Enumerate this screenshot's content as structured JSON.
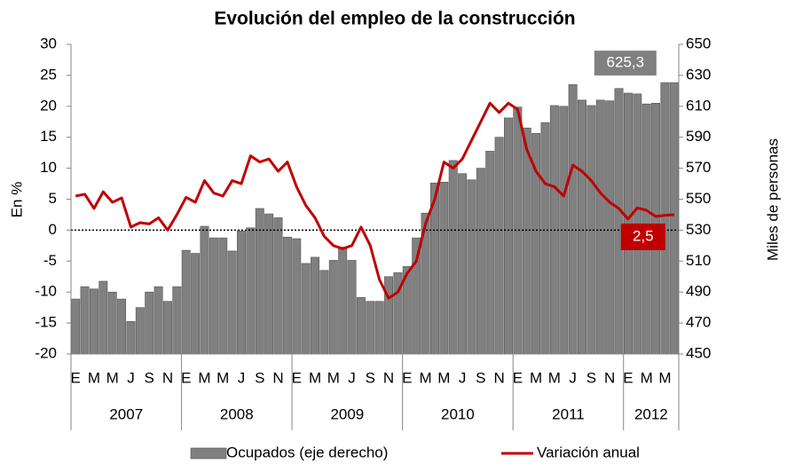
{
  "chart_data": {
    "type": "bar_line",
    "title": "Evolución del empleo de la construcción",
    "ylabel": "En %",
    "y2label": "Miles de personas",
    "categories": [
      "E",
      null,
      "M",
      null,
      "M",
      null,
      "J",
      null,
      "S",
      null,
      "N",
      null,
      "E",
      null,
      "M",
      null,
      "M",
      null,
      "J",
      null,
      "S",
      null,
      "N",
      null,
      "E",
      null,
      "M",
      null,
      "M",
      null,
      "J",
      null,
      "S",
      null,
      "N",
      null,
      "E",
      null,
      "M",
      null,
      "M",
      null,
      "J",
      null,
      "S",
      null,
      "N",
      null,
      "E",
      null,
      "M",
      null,
      "M",
      null,
      "J",
      null,
      "S",
      null,
      "N",
      null,
      "E",
      null,
      "M",
      null,
      "M",
      null
    ],
    "years": [
      "2007",
      "2008",
      "2009",
      "2010",
      "2011",
      "2012"
    ],
    "ylim": [
      -20,
      30
    ],
    "yticks": [
      -20,
      -15,
      -10,
      -5,
      0,
      5,
      10,
      15,
      20,
      25,
      30
    ],
    "y2lim": [
      450,
      650
    ],
    "y2ticks": [
      450,
      470,
      490,
      510,
      530,
      550,
      570,
      590,
      610,
      630,
      650
    ],
    "series": [
      {
        "name": "Ocupados (eje derecho)",
        "type": "bar",
        "axis": "y2",
        "color": "#808080",
        "values": [
          485.5,
          493.5,
          492,
          497,
          490,
          485.5,
          471,
          480,
          490,
          493.5,
          484,
          493.5,
          517,
          515,
          532.5,
          525,
          525,
          516.5,
          529.5,
          531.5,
          544,
          540.5,
          538,
          525.5,
          524.5,
          508.5,
          512.5,
          504,
          510.5,
          519,
          510.5,
          486.5,
          484,
          484,
          500,
          502.5,
          506.5,
          525,
          541,
          560.5,
          561,
          575,
          566.5,
          562.5,
          570,
          581,
          590,
          602.5,
          609.5,
          596,
          592.5,
          599.5,
          610.5,
          610,
          624,
          614,
          610.5,
          614,
          613.5,
          621.5,
          618.5,
          618,
          611.5,
          612,
          625.3,
          625.3
        ],
        "value_labels": [
          null,
          null,
          null,
          null,
          null,
          null,
          null,
          null,
          null,
          null,
          null,
          null,
          null,
          null,
          null,
          null,
          null,
          null,
          null,
          null,
          null,
          null,
          null,
          null,
          null,
          null,
          null,
          null,
          null,
          null,
          null,
          null,
          null,
          null,
          null,
          null,
          null,
          null,
          null,
          null,
          null,
          null,
          null,
          null,
          null,
          null,
          null,
          null,
          null,
          null,
          null,
          null,
          null,
          null,
          null,
          null,
          null,
          null,
          null,
          null,
          null,
          null,
          null,
          null,
          null,
          "625,3"
        ]
      },
      {
        "name": "Variación anual",
        "type": "line",
        "color": "#c00000",
        "values": [
          5.5,
          5.8,
          3.5,
          6.2,
          4.5,
          5.2,
          0.5,
          1.2,
          1.0,
          2.0,
          0.0,
          2.5,
          5.3,
          4.5,
          8.0,
          6.0,
          5.5,
          8.0,
          7.5,
          12.0,
          11.0,
          11.5,
          9.5,
          11.0,
          7.0,
          4.0,
          2.0,
          -1.0,
          -2.5,
          -3.0,
          -2.5,
          0.5,
          -2.5,
          -8.0,
          -11.0,
          -10.0,
          -7.0,
          -5.0,
          1.0,
          5.0,
          11.0,
          10.0,
          11.5,
          14.5,
          17.5,
          20.5,
          19.0,
          20.5,
          19.5,
          13.0,
          9.5,
          7.5,
          7.0,
          5.5,
          10.5,
          9.5,
          8.0,
          6.0,
          4.5,
          3.5,
          1.8,
          3.6,
          3.2,
          2.2,
          2.4,
          2.5
        ],
        "value_labels": [
          null,
          null,
          null,
          null,
          null,
          null,
          null,
          null,
          null,
          null,
          null,
          null,
          null,
          null,
          null,
          null,
          null,
          null,
          null,
          null,
          null,
          null,
          null,
          null,
          null,
          null,
          null,
          null,
          null,
          null,
          null,
          null,
          null,
          null,
          null,
          null,
          null,
          null,
          null,
          null,
          null,
          null,
          null,
          null,
          null,
          null,
          null,
          null,
          null,
          null,
          null,
          null,
          null,
          null,
          null,
          null,
          null,
          null,
          null,
          null,
          null,
          null,
          null,
          null,
          null,
          "2,5"
        ]
      }
    ]
  }
}
